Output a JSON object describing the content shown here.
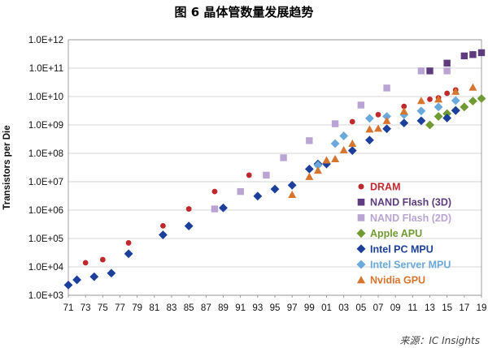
{
  "chart_data": {
    "type": "scatter",
    "title": "图 6 晶体管数量发展趋势",
    "ylabel": "Transistors per Die",
    "xlabel": "",
    "y_scale": "log",
    "ylim": [
      1000,
      1000000000000
    ],
    "y_ticks": [
      "1.0E+03",
      "1.0E+04",
      "1.0E+05",
      "1.0E+06",
      "1.0E+07",
      "1.0E+08",
      "1.0E+09",
      "1.0E+10",
      "1.0E+11",
      "1.0E+12"
    ],
    "x_ticks": [
      "71",
      "73",
      "75",
      "77",
      "79",
      "81",
      "83",
      "85",
      "87",
      "89",
      "91",
      "93",
      "95",
      "97",
      "99",
      "01",
      "03",
      "05",
      "07",
      "09",
      "11",
      "13",
      "15",
      "17",
      "19"
    ],
    "grid": "horizontal",
    "legend_position": "right",
    "series": [
      {
        "name": "DRAM",
        "marker": "circle",
        "color": "#c0282d",
        "points": [
          [
            1973,
            14000
          ],
          [
            1975,
            18000
          ],
          [
            1978,
            70000
          ],
          [
            1982,
            280000
          ],
          [
            1985,
            1100000
          ],
          [
            1988,
            4500000
          ],
          [
            1992,
            17000000
          ],
          [
            1996,
            70000000
          ],
          [
            1999,
            280000000
          ],
          [
            2002,
            1100000000
          ],
          [
            2004,
            1300000000
          ],
          [
            2007,
            2300000000
          ],
          [
            2010,
            4500000000
          ],
          [
            2013,
            8000000000
          ],
          [
            2014,
            9000000000
          ],
          [
            2015,
            13000000000
          ],
          [
            2016,
            17000000000
          ]
        ]
      },
      {
        "name": "NAND Flash (3D)",
        "marker": "square",
        "color": "#5e3b7f",
        "points": [
          [
            2013,
            80000000000
          ],
          [
            2015,
            150000000000
          ],
          [
            2017,
            270000000000
          ],
          [
            2018,
            300000000000
          ],
          [
            2019,
            350000000000
          ]
        ]
      },
      {
        "name": "NAND Flash (2D)",
        "marker": "square",
        "color": "#b9a4d4",
        "points": [
          [
            1988,
            1100000
          ],
          [
            1991,
            4500000
          ],
          [
            1994,
            17000000
          ],
          [
            1996,
            70000000
          ],
          [
            1999,
            280000000
          ],
          [
            2002,
            1100000000
          ],
          [
            2005,
            5000000000
          ],
          [
            2008,
            20000000000
          ],
          [
            2012,
            80000000000
          ],
          [
            2015,
            80000000000
          ]
        ]
      },
      {
        "name": "Apple APU",
        "marker": "diamond",
        "color": "#6f9b32",
        "points": [
          [
            2013,
            1000000000
          ],
          [
            2014,
            2000000000
          ],
          [
            2015,
            2500000000
          ],
          [
            2016,
            3300000000
          ],
          [
            2017,
            4300000000
          ],
          [
            2018,
            6900000000
          ],
          [
            2019,
            8500000000
          ]
        ]
      },
      {
        "name": "Intel PC MPU",
        "marker": "diamond",
        "color": "#1b3f9a",
        "points": [
          [
            1971,
            2300
          ],
          [
            1972,
            3500
          ],
          [
            1974,
            4500
          ],
          [
            1976,
            6000
          ],
          [
            1978,
            29000
          ],
          [
            1982,
            134000
          ],
          [
            1985,
            275000
          ],
          [
            1989,
            1200000
          ],
          [
            1993,
            3100000
          ],
          [
            1995,
            5500000
          ],
          [
            1997,
            7500000
          ],
          [
            1999,
            28000000
          ],
          [
            2000,
            42000000
          ],
          [
            2001,
            42000000
          ],
          [
            2004,
            125000000
          ],
          [
            2006,
            291000000
          ],
          [
            2008,
            731000000
          ],
          [
            2010,
            1170000000
          ],
          [
            2012,
            1400000000
          ],
          [
            2015,
            1750000000
          ],
          [
            2016,
            3200000000
          ]
        ]
      },
      {
        "name": "Intel Server MPU",
        "marker": "diamond",
        "color": "#6aa9dc",
        "points": [
          [
            2000,
            38000000
          ],
          [
            2002,
            220000000
          ],
          [
            2003,
            410000000
          ],
          [
            2006,
            1700000000
          ],
          [
            2008,
            2000000000
          ],
          [
            2010,
            2300000000
          ],
          [
            2012,
            3100000000
          ],
          [
            2014,
            4300000000
          ],
          [
            2016,
            7200000000
          ]
        ]
      },
      {
        "name": "Nvidia GPU",
        "marker": "triangle",
        "color": "#d7742d",
        "points": [
          [
            1997,
            3500000
          ],
          [
            1999,
            15000000
          ],
          [
            2000,
            25000000
          ],
          [
            2001,
            57000000
          ],
          [
            2002,
            63000000
          ],
          [
            2003,
            130000000
          ],
          [
            2004,
            220000000
          ],
          [
            2006,
            700000000
          ],
          [
            2007,
            750000000
          ],
          [
            2008,
            1400000000
          ],
          [
            2010,
            3000000000
          ],
          [
            2012,
            7100000000
          ],
          [
            2014,
            8000000000
          ],
          [
            2016,
            15000000000
          ],
          [
            2018,
            21000000000
          ]
        ]
      }
    ]
  },
  "footer": {
    "source": "来源：IC Insights"
  }
}
